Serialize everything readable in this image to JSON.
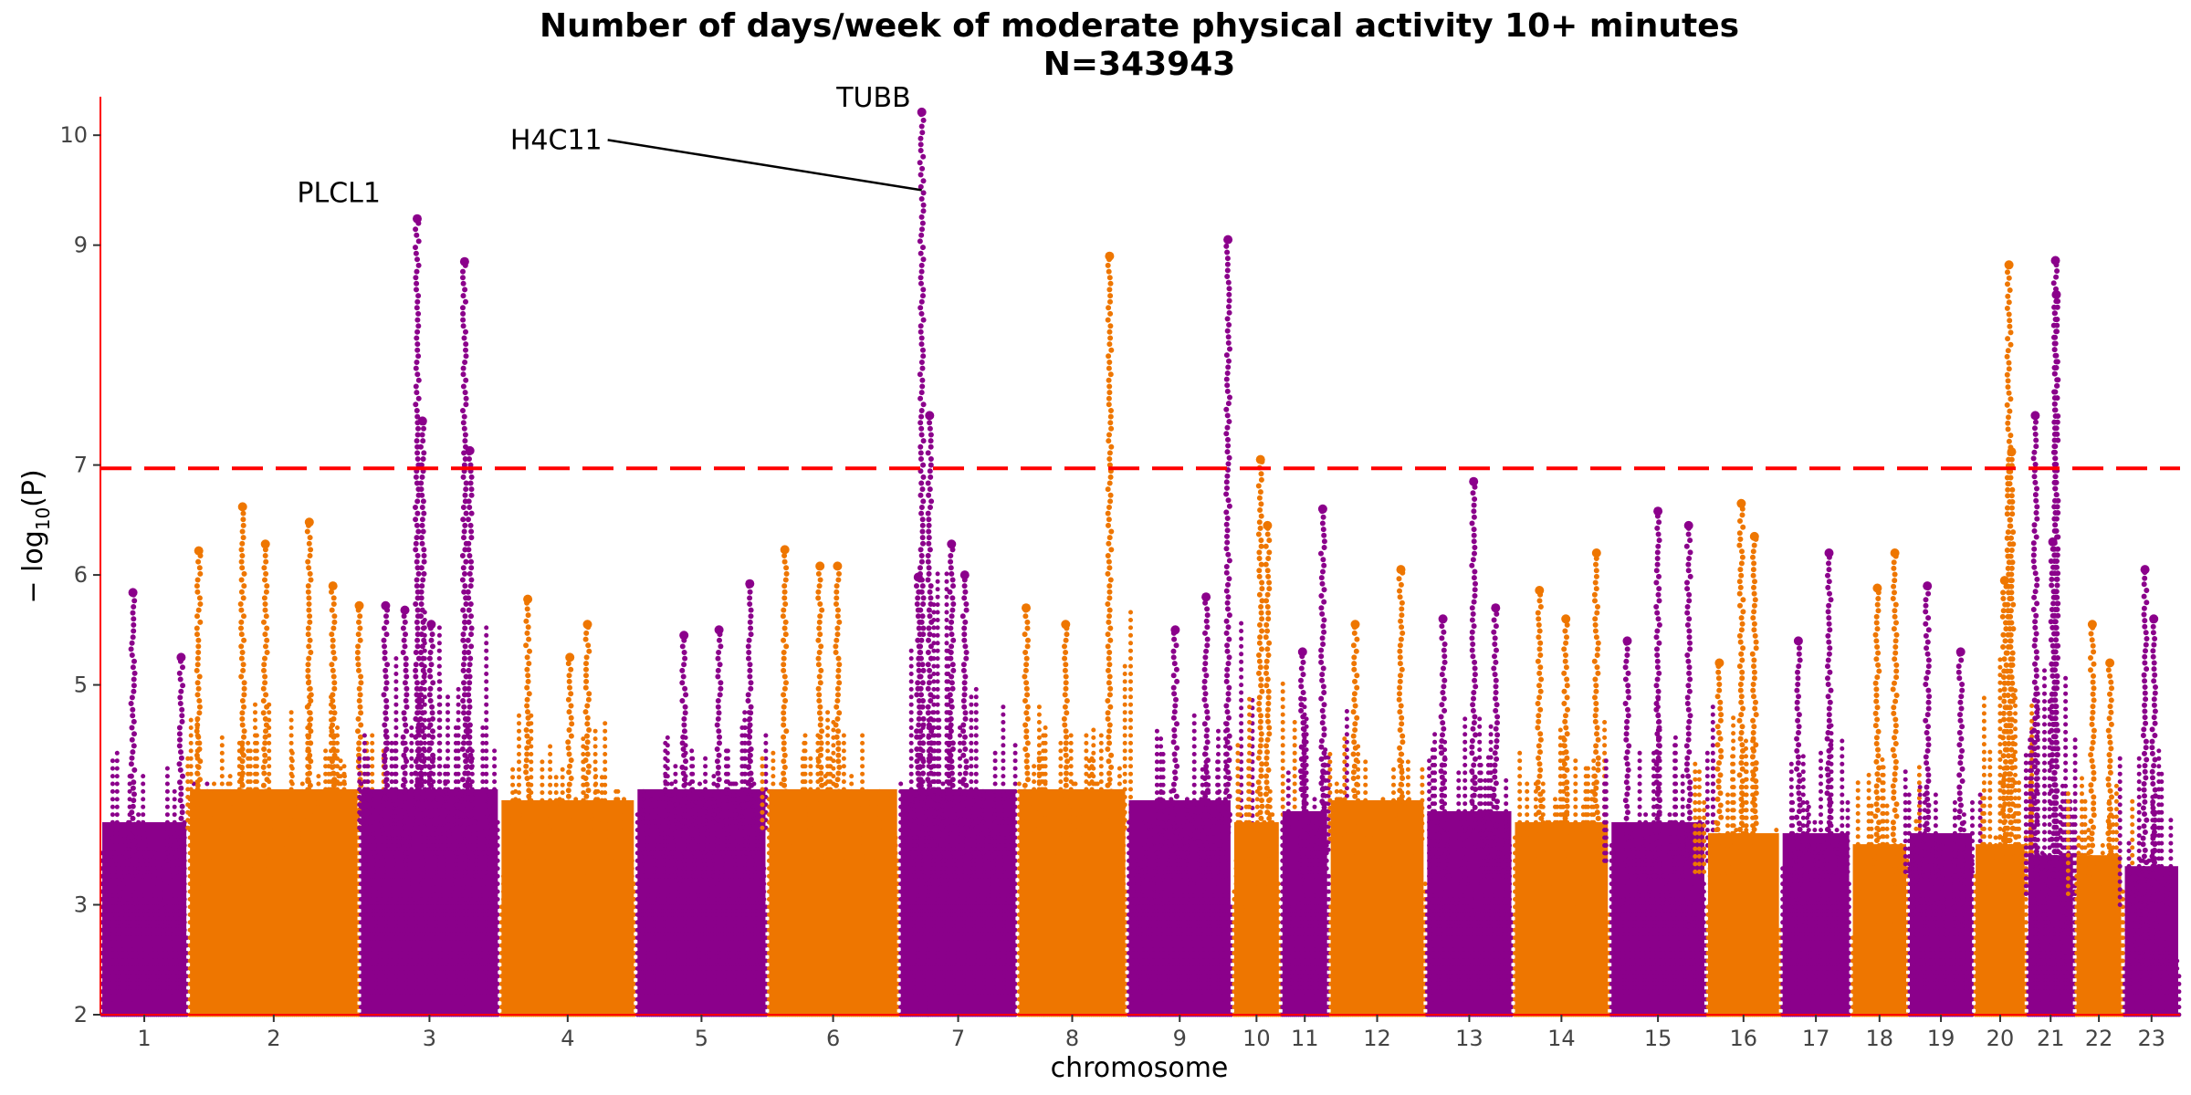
{
  "chart_data": {
    "type": "scatter",
    "title": "Number of days/week of moderate physical activity 10+ minutes",
    "subtitle": "N=343943",
    "xlabel": "chromosome",
    "ylabel": "− log10(P)",
    "ylabel_parts": {
      "prefix": "− log",
      "sub": "10",
      "suffix": "(P)"
    },
    "ylim": [
      2,
      10.35
    ],
    "yticks": [
      2,
      3,
      5,
      6,
      7,
      9,
      10
    ],
    "significance_line": 6.97,
    "colors": {
      "odd": "#8b008b",
      "even": "#ee7600",
      "threshold": "#ff0000",
      "axis": "#ff0000"
    },
    "chromosomes": [
      {
        "label": "1",
        "start": 0,
        "end": 1.0,
        "base": 4.0,
        "peaks": [
          [
            0.37,
            5.84
          ],
          [
            0.92,
            5.25
          ]
        ]
      },
      {
        "label": "2",
        "start": 1.0,
        "end": 2.95,
        "base": 4.3,
        "peaks": [
          [
            0.12,
            6.22
          ],
          [
            0.62,
            6.62
          ],
          [
            0.88,
            6.28
          ],
          [
            1.38,
            6.48
          ],
          [
            1.65,
            5.9
          ],
          [
            1.95,
            5.72
          ]
        ]
      },
      {
        "label": "3",
        "start": 2.95,
        "end": 4.55,
        "base": 4.3,
        "peaks": [
          [
            0.3,
            5.72
          ],
          [
            0.52,
            5.68
          ],
          [
            0.66,
            9.24
          ],
          [
            0.72,
            7.4
          ],
          [
            0.82,
            5.55
          ],
          [
            1.2,
            8.85
          ],
          [
            1.26,
            7.13
          ]
        ]
      },
      {
        "label": "4",
        "start": 4.55,
        "end": 6.1,
        "base": 4.2,
        "peaks": [
          [
            0.32,
            5.78
          ],
          [
            0.8,
            5.25
          ],
          [
            1.0,
            5.55
          ]
        ]
      },
      {
        "label": "5",
        "start": 6.1,
        "end": 7.6,
        "base": 4.3,
        "peaks": [
          [
            0.55,
            5.45
          ],
          [
            0.95,
            5.5
          ],
          [
            1.3,
            5.92
          ]
        ]
      },
      {
        "label": "6",
        "start": 7.6,
        "end": 9.1,
        "base": 4.3,
        "peaks": [
          [
            0.2,
            6.23
          ],
          [
            0.6,
            6.08
          ],
          [
            0.8,
            6.08
          ]
        ]
      },
      {
        "label": "7",
        "start": 9.1,
        "end": 10.45,
        "base": 4.3,
        "peaks": [
          [
            0.22,
            5.98
          ],
          [
            0.26,
            10.21
          ],
          [
            0.35,
            7.45
          ],
          [
            0.6,
            6.28
          ],
          [
            0.75,
            6.0
          ]
        ]
      },
      {
        "label": "8",
        "start": 10.45,
        "end": 11.7,
        "base": 4.3,
        "peaks": [
          [
            0.1,
            5.7
          ],
          [
            0.55,
            5.55
          ],
          [
            1.05,
            8.9
          ]
        ]
      },
      {
        "label": "9",
        "start": 11.7,
        "end": 12.9,
        "base": 4.2,
        "peaks": [
          [
            0.55,
            5.5
          ],
          [
            0.9,
            5.8
          ],
          [
            1.15,
            9.05
          ]
        ]
      },
      {
        "label": "10",
        "start": 12.9,
        "end": 13.45,
        "base": 4.0,
        "peaks": [
          [
            0.32,
            7.05
          ],
          [
            0.4,
            6.45
          ]
        ]
      },
      {
        "label": "11",
        "start": 13.45,
        "end": 14.0,
        "base": 4.1,
        "peaks": [
          [
            0.25,
            5.3
          ],
          [
            0.48,
            6.6
          ]
        ]
      },
      {
        "label": "12",
        "start": 14.0,
        "end": 15.1,
        "base": 4.2,
        "peaks": [
          [
            0.3,
            5.55
          ],
          [
            0.82,
            6.05
          ]
        ]
      },
      {
        "label": "13",
        "start": 15.1,
        "end": 16.1,
        "base": 4.1,
        "peaks": [
          [
            0.2,
            5.6
          ],
          [
            0.55,
            6.85
          ],
          [
            0.8,
            5.7
          ]
        ]
      },
      {
        "label": "14",
        "start": 16.1,
        "end": 17.2,
        "base": 4.0,
        "peaks": [
          [
            0.3,
            5.86
          ],
          [
            0.6,
            5.6
          ],
          [
            0.95,
            6.2
          ]
        ]
      },
      {
        "label": "15",
        "start": 17.2,
        "end": 18.3,
        "base": 4.0,
        "peaks": [
          [
            0.2,
            5.4
          ],
          [
            0.55,
            6.58
          ],
          [
            0.9,
            6.45
          ]
        ]
      },
      {
        "label": "16",
        "start": 18.3,
        "end": 19.15,
        "base": 3.9,
        "peaks": [
          [
            0.15,
            5.2
          ],
          [
            0.4,
            6.65
          ],
          [
            0.55,
            6.35
          ]
        ]
      },
      {
        "label": "17",
        "start": 19.15,
        "end": 19.95,
        "base": 3.9,
        "peaks": [
          [
            0.2,
            5.4
          ],
          [
            0.55,
            6.2
          ]
        ]
      },
      {
        "label": "18",
        "start": 19.95,
        "end": 20.6,
        "base": 3.8,
        "peaks": [
          [
            0.3,
            5.88
          ],
          [
            0.5,
            6.2
          ]
        ]
      },
      {
        "label": "19",
        "start": 20.6,
        "end": 21.35,
        "base": 3.9,
        "peaks": [
          [
            0.22,
            5.9
          ],
          [
            0.6,
            5.3
          ]
        ]
      },
      {
        "label": "20",
        "start": 21.35,
        "end": 21.95,
        "base": 3.8,
        "peaks": [
          [
            0.35,
            5.95
          ],
          [
            0.4,
            8.82
          ],
          [
            0.43,
            7.12
          ]
        ]
      },
      {
        "label": "21",
        "start": 21.95,
        "end": 22.5,
        "base": 3.7,
        "peaks": [
          [
            0.1,
            7.45
          ],
          [
            0.33,
            8.86
          ],
          [
            0.34,
            8.55
          ],
          [
            0.3,
            6.3
          ]
        ]
      },
      {
        "label": "22",
        "start": 22.5,
        "end": 23.05,
        "base": 3.7,
        "peaks": [
          [
            0.2,
            5.55
          ],
          [
            0.4,
            5.2
          ]
        ]
      },
      {
        "label": "23",
        "start": 23.05,
        "end": 23.7,
        "base": 3.6,
        "peaks": [
          [
            0.25,
            6.05
          ],
          [
            0.35,
            5.6
          ]
        ]
      }
    ],
    "chr_label_positions": [
      0.15,
      1.4,
      2.2,
      3.35,
      4.3,
      5.25,
      6.2,
      7.15,
      8.1,
      9.0,
      9.65,
      10.3,
      11.0,
      11.72,
      12.3,
      12.9,
      13.55,
      14.05,
      14.6,
      15.1,
      15.6,
      16.1,
      16.75
    ],
    "annotations": [
      {
        "label": "TUBB",
        "x": 9.36,
        "y": 10.21
      },
      {
        "label": "H4C11",
        "x": 9.36,
        "y": 9.5
      },
      {
        "label": "PLCL1",
        "x": 3.61,
        "y": 9.24
      }
    ]
  }
}
